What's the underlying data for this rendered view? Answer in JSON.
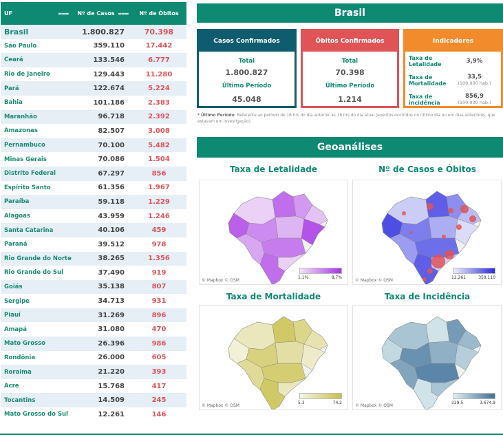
{
  "table": {
    "headers": {
      "uf": "UF",
      "casos": "Nº de Casos",
      "obitos": "Nº de Óbitos"
    },
    "filter_icon": "filter-icon",
    "rows": [
      {
        "uf": "Brasil",
        "casos": "1.800.827",
        "obitos": "70.398"
      },
      {
        "uf": "São Paulo",
        "casos": "359.110",
        "obitos": "17.442"
      },
      {
        "uf": "Ceará",
        "casos": "133.546",
        "obitos": "6.777"
      },
      {
        "uf": "Rio de Janeiro",
        "casos": "129.443",
        "obitos": "11.280"
      },
      {
        "uf": "Pará",
        "casos": "122.674",
        "obitos": "5.224"
      },
      {
        "uf": "Bahia",
        "casos": "101.186",
        "obitos": "2.383"
      },
      {
        "uf": "Maranhão",
        "casos": "96.718",
        "obitos": "2.392"
      },
      {
        "uf": "Amazonas",
        "casos": "82.507",
        "obitos": "3.008"
      },
      {
        "uf": "Pernambuco",
        "casos": "70.100",
        "obitos": "5.482"
      },
      {
        "uf": "Minas Gerais",
        "casos": "70.086",
        "obitos": "1.504"
      },
      {
        "uf": "Distrito Federal",
        "casos": "67.297",
        "obitos": "856"
      },
      {
        "uf": "Espírito Santo",
        "casos": "61.356",
        "obitos": "1.967"
      },
      {
        "uf": "Paraíba",
        "casos": "59.118",
        "obitos": "1.229"
      },
      {
        "uf": "Alagoas",
        "casos": "43.959",
        "obitos": "1.246"
      },
      {
        "uf": "Santa Catarina",
        "casos": "40.106",
        "obitos": "459"
      },
      {
        "uf": "Paraná",
        "casos": "39.512",
        "obitos": "978"
      },
      {
        "uf": "Rio Grande do Norte",
        "casos": "38.265",
        "obitos": "1.356"
      },
      {
        "uf": "Rio Grande do Sul",
        "casos": "37.490",
        "obitos": "919"
      },
      {
        "uf": "Goiás",
        "casos": "35.138",
        "obitos": "807"
      },
      {
        "uf": "Sergipe",
        "casos": "34.713",
        "obitos": "931"
      },
      {
        "uf": "Piauí",
        "casos": "31.269",
        "obitos": "896"
      },
      {
        "uf": "Amapá",
        "casos": "31.080",
        "obitos": "470"
      },
      {
        "uf": "Mato Grosso",
        "casos": "26.396",
        "obitos": "986"
      },
      {
        "uf": "Rondônia",
        "casos": "26.000",
        "obitos": "605"
      },
      {
        "uf": "Roraima",
        "casos": "21.220",
        "obitos": "393"
      },
      {
        "uf": "Acre",
        "casos": "15.768",
        "obitos": "417"
      },
      {
        "uf": "Tocantins",
        "casos": "14.509",
        "obitos": "245"
      },
      {
        "uf": "Mato Grosso do Sul",
        "casos": "12.261",
        "obitos": "146"
      }
    ]
  },
  "brasil": {
    "title": "Brasil",
    "casos": {
      "title": "Casos Confirmados",
      "total_label": "Total",
      "total": "1.800.827",
      "period_label": "Último Período",
      "period": "45.048"
    },
    "obitos": {
      "title": "Óbitos Confirmados",
      "total_label": "Total",
      "total": "70.398",
      "period_label": "Último Período",
      "period": "1.214"
    },
    "indicadores": {
      "title": "Indicadores",
      "letalidade_label": "Taxa de Letalidade",
      "letalidade": "3,9%",
      "mortalidade_label": "Taxa de Mortalidade",
      "mortalidade": "33,5",
      "mortalidade_unit": "(100.000 hab.)",
      "incidencia_label": "Taxa de incidência",
      "incidencia": "856,9",
      "incidencia_unit": "(100.000 hab.)"
    },
    "note_bold": "* Último Período",
    "note": ": Referente ao período de 16 hrs do dia anterior às 16 hrs do dia atual (eventos ocorridos no último dia ou em dias anteriores, que estavam em investigação)"
  },
  "geo": {
    "title": "Geoanálises",
    "attribution": "© Mapbox  © OSM",
    "maps": [
      {
        "title": "Taxa de Letalidade",
        "legend_min": "1,1%",
        "legend_max": "8,7%",
        "color_low": "#f2e3f7",
        "color_high": "#a632e6"
      },
      {
        "title": "Nº de Casos e Óbitos",
        "legend_min": "12.261",
        "legend_max": "359.110",
        "color_low": "#eef0fb",
        "color_high": "#2b2be0"
      },
      {
        "title": "Taxa de Mortalidade",
        "legend_min": "5,3",
        "legend_max": "74,2",
        "color_low": "#f6f5e6",
        "color_high": "#c9bf49"
      },
      {
        "title": "Taxa de Incidência",
        "legend_min": "329,5",
        "legend_max": "3.674,9",
        "color_low": "#dff0f1",
        "color_high": "#3f6f99"
      }
    ]
  },
  "colors": {
    "teal": "#0e8a73",
    "navy": "#0f5c6e",
    "red": "#e05357",
    "orange": "#f28b2c"
  }
}
